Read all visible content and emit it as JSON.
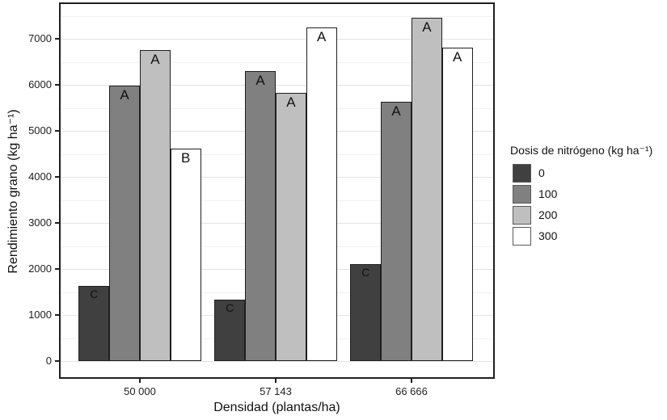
{
  "chart_data": {
    "type": "bar",
    "title": "",
    "xlabel": "Densidad (plantas/ha)",
    "ylabel": "Rendimiento grano (kg ha⁻¹)",
    "legend_title": "Dosis de nitrógeno (kg ha⁻¹)",
    "legend_position": "right",
    "grid": "major-and-minor-horizontal",
    "categories": [
      "50 000",
      "57 143",
      "66 666"
    ],
    "series": [
      {
        "name": "0",
        "color": "#404040",
        "values": [
          1640,
          1340,
          2100
        ],
        "letters": [
          "C",
          "C",
          "C"
        ]
      },
      {
        "name": "100",
        "color": "#808080",
        "values": [
          5980,
          6300,
          5640
        ],
        "letters": [
          "A",
          "A",
          "A"
        ]
      },
      {
        "name": "200",
        "color": "#bfbfbf",
        "values": [
          6760,
          5820,
          7460
        ],
        "letters": [
          "A",
          "A",
          "A"
        ]
      },
      {
        "name": "300",
        "color": "#ffffff",
        "values": [
          4610,
          7250,
          6800
        ],
        "letters": [
          "B",
          "A",
          "A"
        ]
      }
    ],
    "y_ticks": [
      0,
      1000,
      2000,
      3000,
      4000,
      5000,
      6000,
      7000
    ],
    "ylim": [
      0,
      7790
    ],
    "minor_grid_step": 500,
    "bar_outline_color": "#1f1f1f",
    "letter_color": "#111111"
  }
}
